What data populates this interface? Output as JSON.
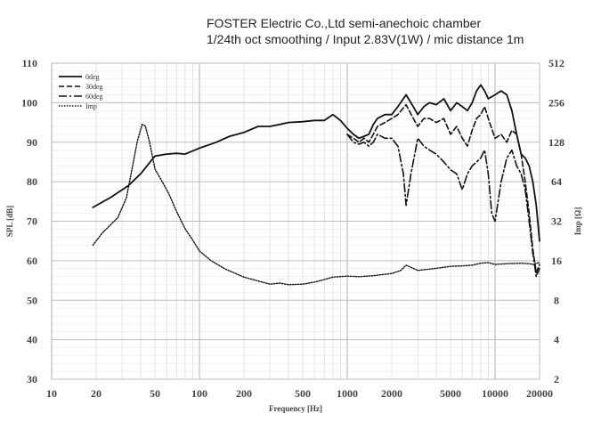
{
  "header": {
    "line1": "FOSTER Electric Co.,Ltd  semi-anechoic chamber",
    "line2": "1/24th oct smoothing / Input 2.83V(1W) / mic distance 1m"
  },
  "chart_data": {
    "type": "line",
    "xlabel": "Frequency [Hz]",
    "ylabel": "SPL [dB]",
    "y2label": "Imp [Ω]",
    "xscale": "log",
    "y2scale": "log",
    "xlim": [
      10,
      20000
    ],
    "ylim": [
      30,
      110
    ],
    "y2lim": [
      2,
      512
    ],
    "grid": true,
    "legend_position": "top-left",
    "xticks": [
      10,
      20,
      50,
      100,
      200,
      500,
      1000,
      2000,
      5000,
      10000,
      20000
    ],
    "xtick_labels": [
      "10",
      "20",
      "50",
      "100",
      "200",
      "500",
      "1000",
      "2000",
      "5000",
      "10000",
      "20000"
    ],
    "yticks": [
      30,
      40,
      50,
      60,
      70,
      80,
      90,
      100,
      110
    ],
    "ytick_labels": [
      "30",
      "40",
      "50",
      "60",
      "70",
      "80",
      "90",
      "100",
      "110"
    ],
    "y2ticks": [
      2,
      4,
      8,
      16,
      32,
      64,
      128,
      256,
      512
    ],
    "y2tick_labels": [
      "2",
      "4",
      "8",
      "16",
      "32",
      "64",
      "128",
      "256",
      "512"
    ],
    "series": [
      {
        "name": "0deg",
        "axis": "left",
        "style": "solid",
        "color": "#111111",
        "points": [
          [
            19,
            73.5
          ],
          [
            25,
            76
          ],
          [
            33,
            79
          ],
          [
            40,
            82
          ],
          [
            50,
            86.5
          ],
          [
            60,
            87
          ],
          [
            70,
            87.2
          ],
          [
            80,
            87
          ],
          [
            100,
            88.5
          ],
          [
            130,
            90
          ],
          [
            160,
            91.5
          ],
          [
            200,
            92.5
          ],
          [
            250,
            94
          ],
          [
            300,
            94
          ],
          [
            350,
            94.5
          ],
          [
            400,
            95
          ],
          [
            500,
            95.2
          ],
          [
            600,
            95.5
          ],
          [
            700,
            95.5
          ],
          [
            800,
            97
          ],
          [
            900,
            95.5
          ],
          [
            1000,
            93.5
          ],
          [
            1100,
            92
          ],
          [
            1200,
            91
          ],
          [
            1300,
            91.5
          ],
          [
            1400,
            92
          ],
          [
            1500,
            94.5
          ],
          [
            1600,
            96
          ],
          [
            1800,
            97
          ],
          [
            2000,
            97
          ],
          [
            2200,
            99
          ],
          [
            2500,
            102
          ],
          [
            2800,
            99
          ],
          [
            3000,
            97
          ],
          [
            3300,
            99
          ],
          [
            3600,
            100
          ],
          [
            4000,
            99.5
          ],
          [
            4500,
            101
          ],
          [
            5000,
            98
          ],
          [
            5500,
            100
          ],
          [
            6000,
            99
          ],
          [
            6500,
            98
          ],
          [
            7000,
            100
          ],
          [
            7500,
            103
          ],
          [
            8000,
            104.5
          ],
          [
            8500,
            103
          ],
          [
            9000,
            101
          ],
          [
            10000,
            102
          ],
          [
            11000,
            103
          ],
          [
            12000,
            102
          ],
          [
            13000,
            98
          ],
          [
            14000,
            92
          ],
          [
            15000,
            87
          ],
          [
            16000,
            86
          ],
          [
            17000,
            84
          ],
          [
            18000,
            80
          ],
          [
            19000,
            74
          ],
          [
            20000,
            65
          ]
        ]
      },
      {
        "name": "30deg",
        "axis": "left",
        "style": "dashed",
        "color": "#111111",
        "points": [
          [
            1000,
            92
          ],
          [
            1100,
            91
          ],
          [
            1200,
            90
          ],
          [
            1300,
            91
          ],
          [
            1400,
            90
          ],
          [
            1500,
            92
          ],
          [
            1600,
            94
          ],
          [
            1800,
            95
          ],
          [
            2000,
            96
          ],
          [
            2200,
            97
          ],
          [
            2500,
            99.5
          ],
          [
            2800,
            96
          ],
          [
            3000,
            94
          ],
          [
            3300,
            96
          ],
          [
            3600,
            96
          ],
          [
            4000,
            95
          ],
          [
            4500,
            96
          ],
          [
            5000,
            92
          ],
          [
            5500,
            94
          ],
          [
            6000,
            91
          ],
          [
            6500,
            89
          ],
          [
            7000,
            93
          ],
          [
            7500,
            96
          ],
          [
            8000,
            97
          ],
          [
            8500,
            99
          ],
          [
            9000,
            96
          ],
          [
            10000,
            91
          ],
          [
            11000,
            92
          ],
          [
            12000,
            90
          ],
          [
            13000,
            93
          ],
          [
            14000,
            92
          ],
          [
            15000,
            87
          ],
          [
            16000,
            80
          ],
          [
            17000,
            72
          ],
          [
            18000,
            63
          ],
          [
            19000,
            57
          ],
          [
            20000,
            59
          ]
        ]
      },
      {
        "name": "60deg",
        "axis": "left",
        "style": "dashdot",
        "color": "#111111",
        "points": [
          [
            1000,
            92
          ],
          [
            1100,
            90
          ],
          [
            1200,
            89.5
          ],
          [
            1300,
            90
          ],
          [
            1400,
            89
          ],
          [
            1500,
            90
          ],
          [
            1600,
            92
          ],
          [
            1800,
            91
          ],
          [
            2000,
            91
          ],
          [
            2200,
            89
          ],
          [
            2400,
            82
          ],
          [
            2500,
            74
          ],
          [
            2700,
            82
          ],
          [
            3000,
            91
          ],
          [
            3300,
            89
          ],
          [
            3600,
            88
          ],
          [
            4000,
            87
          ],
          [
            4500,
            85
          ],
          [
            5000,
            83
          ],
          [
            5500,
            82
          ],
          [
            6000,
            78
          ],
          [
            6500,
            82
          ],
          [
            7000,
            84
          ],
          [
            7500,
            85
          ],
          [
            8000,
            86
          ],
          [
            8500,
            88
          ],
          [
            9000,
            82
          ],
          [
            9500,
            72
          ],
          [
            10000,
            70
          ],
          [
            11000,
            80
          ],
          [
            12000,
            86
          ],
          [
            13000,
            88
          ],
          [
            14000,
            84
          ],
          [
            15000,
            82
          ],
          [
            16000,
            78
          ],
          [
            17000,
            70
          ],
          [
            18000,
            62
          ],
          [
            19000,
            56
          ],
          [
            20000,
            58
          ]
        ]
      },
      {
        "name": "Imp",
        "axis": "right",
        "style": "dotted",
        "color": "#111111",
        "points": [
          [
            19,
            21
          ],
          [
            22,
            26
          ],
          [
            25,
            30
          ],
          [
            28,
            34
          ],
          [
            32,
            48
          ],
          [
            35,
            80
          ],
          [
            38,
            130
          ],
          [
            41,
            175
          ],
          [
            43,
            170
          ],
          [
            46,
            128
          ],
          [
            50,
            80
          ],
          [
            56,
            64
          ],
          [
            62,
            52
          ],
          [
            70,
            38
          ],
          [
            80,
            28
          ],
          [
            90,
            23
          ],
          [
            100,
            19
          ],
          [
            120,
            16
          ],
          [
            150,
            13.8
          ],
          [
            200,
            12
          ],
          [
            250,
            11.2
          ],
          [
            300,
            10.6
          ],
          [
            350,
            10.8
          ],
          [
            400,
            10.5
          ],
          [
            500,
            10.6
          ],
          [
            600,
            11
          ],
          [
            700,
            11.5
          ],
          [
            800,
            12
          ],
          [
            1000,
            12.2
          ],
          [
            1200,
            12.1
          ],
          [
            1500,
            12.3
          ],
          [
            2000,
            12.8
          ],
          [
            2300,
            13.5
          ],
          [
            2500,
            14.8
          ],
          [
            2800,
            14
          ],
          [
            3000,
            13.5
          ],
          [
            4000,
            14
          ],
          [
            5000,
            14.5
          ],
          [
            6000,
            14.6
          ],
          [
            7000,
            14.8
          ],
          [
            8000,
            15.3
          ],
          [
            9000,
            15.5
          ],
          [
            10000,
            15
          ],
          [
            12000,
            15.2
          ],
          [
            15000,
            15.3
          ],
          [
            17000,
            15.2
          ],
          [
            18000,
            15
          ],
          [
            20000,
            15.5
          ]
        ]
      }
    ]
  }
}
